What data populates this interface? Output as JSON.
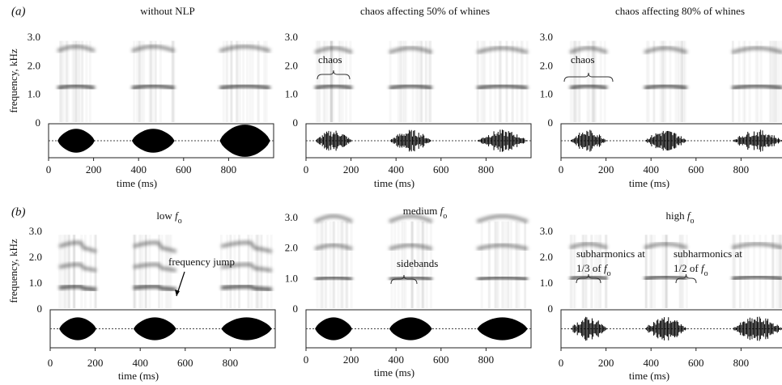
{
  "rows": [
    {
      "label": "(a)",
      "panels": [
        {
          "title": [
            "without NLP"
          ],
          "y_label": "frequency, kHz",
          "yticks": [
            "3.0",
            "2.0",
            "1.0",
            "0"
          ],
          "xticks": [
            "0",
            "200",
            "400",
            "600",
            "800"
          ],
          "x_label": "time (ms)",
          "annotations": []
        },
        {
          "title": [
            "chaos affecting 50% of whines"
          ],
          "yticks": [
            "3.0",
            "2.0",
            "1.0",
            "0"
          ],
          "xticks": [
            "0",
            "200",
            "400",
            "600",
            "800"
          ],
          "x_label": "time (ms)",
          "annotations": [
            [
              "chaos"
            ]
          ]
        },
        {
          "title": [
            "chaos affecting 80% of whines"
          ],
          "yticks": [
            "3.0",
            "2.0",
            "1.0",
            "0"
          ],
          "xticks": [
            "0",
            "200",
            "400",
            "600",
            "800"
          ],
          "x_label": "time (ms)",
          "annotations": [
            [
              "chaos"
            ]
          ]
        }
      ]
    },
    {
      "label": "(b)",
      "panels": [
        {
          "title": [
            "low ",
            "f",
            "o"
          ],
          "y_label": "frequency, kHz",
          "yticks": [
            "3.0",
            "2.0",
            "1.0",
            "0"
          ],
          "xticks": [
            "0",
            "200",
            "400",
            "600",
            "800"
          ],
          "x_label": "time (ms)",
          "annotations": [
            [
              "frequency jump"
            ]
          ]
        },
        {
          "title": [
            "medium ",
            "f",
            "o"
          ],
          "yticks": [
            "3.0",
            "2.0",
            "1.0",
            "0"
          ],
          "xticks": [
            "0",
            "200",
            "400",
            "600",
            "800"
          ],
          "x_label": "time (ms)",
          "annotations": [
            [
              "sidebands"
            ]
          ]
        },
        {
          "title": [
            "high ",
            "f",
            "o"
          ],
          "yticks": [
            "3.0",
            "2.0",
            "1.0",
            "0"
          ],
          "xticks": [
            "0",
            "200",
            "400",
            "600",
            "800"
          ],
          "x_label": "time (ms)",
          "annotations": [
            [
              "subharmonics at",
              "1/3 of ",
              "f",
              "o"
            ],
            [
              "subharmonics at",
              "1/2 of ",
              "f",
              "o"
            ]
          ]
        }
      ]
    }
  ]
}
